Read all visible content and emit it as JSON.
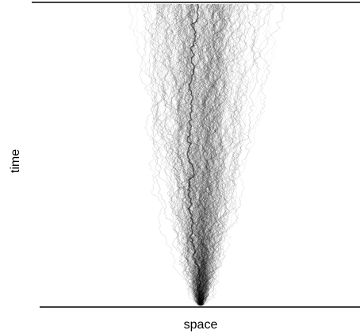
{
  "figure": {
    "x_label": "space",
    "y_label": "time",
    "colors": {
      "background": "#ffffff",
      "lines": "#000000",
      "paths": "#000000"
    }
  }
}
